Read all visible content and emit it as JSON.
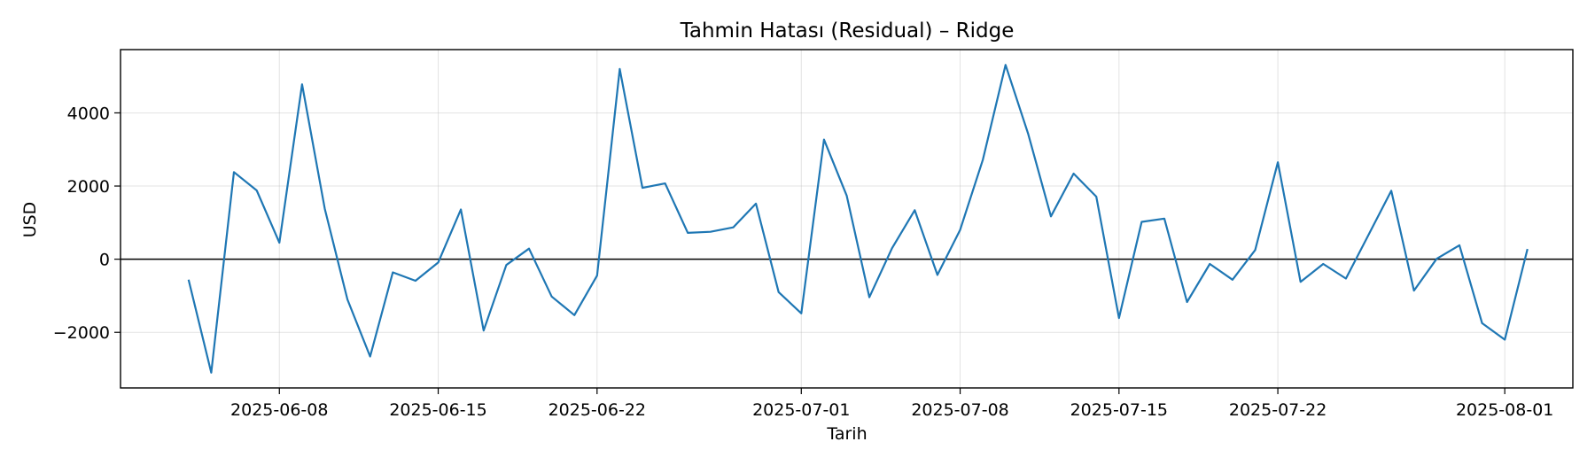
{
  "chart_data": {
    "type": "line",
    "title": "Tahmin Hatası (Residual) – Ridge",
    "xlabel": "Tarih",
    "ylabel": "USD",
    "x_start": "2025-06-04",
    "x": [
      "2025-06-04",
      "2025-06-05",
      "2025-06-06",
      "2025-06-07",
      "2025-06-08",
      "2025-06-09",
      "2025-06-10",
      "2025-06-11",
      "2025-06-12",
      "2025-06-13",
      "2025-06-14",
      "2025-06-15",
      "2025-06-16",
      "2025-06-17",
      "2025-06-18",
      "2025-06-19",
      "2025-06-20",
      "2025-06-21",
      "2025-06-22",
      "2025-06-23",
      "2025-06-24",
      "2025-06-25",
      "2025-06-26",
      "2025-06-27",
      "2025-06-28",
      "2025-06-29",
      "2025-06-30",
      "2025-07-01",
      "2025-07-02",
      "2025-07-03",
      "2025-07-04",
      "2025-07-05",
      "2025-07-06",
      "2025-07-07",
      "2025-07-08",
      "2025-07-09",
      "2025-07-10",
      "2025-07-11",
      "2025-07-12",
      "2025-07-13",
      "2025-07-14",
      "2025-07-15",
      "2025-07-16",
      "2025-07-17",
      "2025-07-18",
      "2025-07-19",
      "2025-07-20",
      "2025-07-21",
      "2025-07-22",
      "2025-07-23",
      "2025-07-24",
      "2025-07-25",
      "2025-07-26",
      "2025-07-27",
      "2025-07-28",
      "2025-07-29",
      "2025-07-30",
      "2025-07-31",
      "2025-08-01",
      "2025-08-02"
    ],
    "series": [
      {
        "name": "",
        "color": "#1f77b4",
        "values": [
          -560,
          -3100,
          2380,
          1880,
          450,
          4780,
          1380,
          -1100,
          -2660,
          -360,
          -590,
          -90,
          1360,
          -1950,
          -160,
          290,
          -1020,
          -1530,
          -450,
          5200,
          1950,
          2070,
          720,
          750,
          870,
          1520,
          -900,
          -1480,
          3270,
          1740,
          -1040,
          300,
          1340,
          -430,
          800,
          2720,
          5310,
          3420,
          1170,
          2340,
          1710,
          -1610,
          1020,
          1110,
          -1170,
          -130,
          -560,
          250,
          2650,
          -620,
          -130,
          -530,
          670,
          1870,
          -860,
          10,
          380,
          -1750,
          -2200,
          280
        ]
      }
    ],
    "ylim": [
      -3520,
      5730
    ],
    "xlim": [
      "2025-06-01",
      "2025-08-04"
    ],
    "yticks": [
      -2000,
      0,
      2000,
      4000
    ],
    "ytick_labels": [
      "−2000",
      "0",
      "2000",
      "4000"
    ],
    "xticks": [
      "2025-06-08",
      "2025-06-15",
      "2025-06-22",
      "2025-07-01",
      "2025-07-08",
      "2025-07-15",
      "2025-07-22",
      "2025-08-01"
    ],
    "xtick_labels": [
      "2025-06-08",
      "2025-06-15",
      "2025-06-22",
      "2025-07-01",
      "2025-07-08",
      "2025-07-15",
      "2025-07-22",
      "2025-08-01"
    ],
    "hline": 0,
    "grid": true,
    "legend": false
  }
}
